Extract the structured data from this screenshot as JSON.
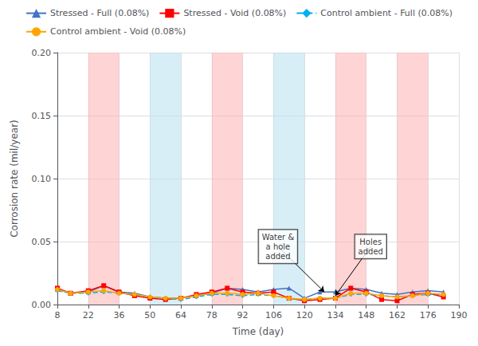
{
  "chart_data": {
    "type": "line",
    "xlabel": "Time (day)",
    "ylabel": "Corrosion rate (mil/year)",
    "x": [
      8,
      14,
      22,
      29,
      36,
      43,
      50,
      57,
      64,
      71,
      78,
      85,
      92,
      99,
      106,
      113,
      120,
      127,
      134,
      141,
      148,
      155,
      162,
      169,
      176,
      183
    ],
    "xlim": [
      8,
      190
    ],
    "xticks": [
      8,
      22,
      36,
      50,
      64,
      78,
      92,
      106,
      120,
      134,
      148,
      162,
      176,
      190
    ],
    "ylim": [
      0,
      0.2
    ],
    "yticks": [
      {
        "value": 0,
        "label": "0.00"
      },
      {
        "value": 0.05,
        "label": "0.05"
      },
      {
        "value": 0.1,
        "label": "0.10"
      },
      {
        "value": 0.15,
        "label": "0.15"
      },
      {
        "value": 0.2,
        "label": "0.20"
      }
    ],
    "grid": true,
    "legend": "top",
    "series": [
      {
        "name": "Stressed - Full (0.08%)",
        "color": "#4472C4",
        "marker": "triangle",
        "line_style": "solid",
        "values": [
          0.012,
          0.009,
          0.01,
          0.015,
          0.01,
          0.009,
          0.006,
          0.005,
          0.005,
          0.007,
          0.009,
          0.013,
          0.012,
          0.01,
          0.012,
          0.013,
          0.005,
          0.01,
          0.01,
          0.013,
          0.012,
          0.009,
          0.008,
          0.01,
          0.011,
          0.01
        ]
      },
      {
        "name": "Stressed - Void (0.08%)",
        "color": "#FF0000",
        "marker": "square",
        "line_style": "solid",
        "values": [
          0.013,
          0.009,
          0.011,
          0.015,
          0.01,
          0.007,
          0.005,
          0.004,
          0.005,
          0.008,
          0.01,
          0.013,
          0.01,
          0.009,
          0.01,
          0.005,
          0.003,
          0.004,
          0.005,
          0.013,
          0.01,
          0.004,
          0.003,
          0.008,
          0.009,
          0.006
        ]
      },
      {
        "name": "Control ambient - Full (0.08%)",
        "color": "#00B0F0",
        "marker": "diamond",
        "line_style": "dashed",
        "values": [
          0.011,
          0.009,
          0.009,
          0.01,
          0.009,
          0.008,
          0.006,
          0.005,
          0.004,
          0.006,
          0.008,
          0.008,
          0.007,
          0.008,
          0.007,
          0.005,
          0.004,
          0.005,
          0.005,
          0.008,
          0.008,
          0.007,
          0.006,
          0.007,
          0.008,
          0.008
        ]
      },
      {
        "name": "Control ambient - Void (0.08%)",
        "color": "#FFA500",
        "marker": "circle",
        "line_style": "solid",
        "values": [
          0.012,
          0.009,
          0.01,
          0.011,
          0.009,
          0.008,
          0.006,
          0.005,
          0.005,
          0.007,
          0.009,
          0.009,
          0.008,
          0.009,
          0.007,
          0.005,
          0.004,
          0.005,
          0.005,
          0.009,
          0.009,
          0.007,
          0.006,
          0.007,
          0.009,
          0.008
        ]
      }
    ],
    "bands": [
      {
        "from": 22,
        "to": 36,
        "color": "#FFB0B0"
      },
      {
        "from": 78,
        "to": 92,
        "color": "#FFB0B0"
      },
      {
        "from": 134,
        "to": 148,
        "color": "#FFB0B0"
      },
      {
        "from": 162,
        "to": 176,
        "color": "#FFB0B0"
      },
      {
        "from": 50,
        "to": 64,
        "color": "#B8E0F0"
      },
      {
        "from": 106,
        "to": 120,
        "color": "#B8E0F0"
      }
    ],
    "annotations": [
      {
        "text": "Water &\na hole\nadded",
        "x": 129,
        "y": 0.01,
        "text_x": 108,
        "text_y": 0.046
      },
      {
        "text": "Holes\nadded",
        "x": 134,
        "y": 0.007,
        "text_x": 150,
        "text_y": 0.046
      }
    ]
  }
}
